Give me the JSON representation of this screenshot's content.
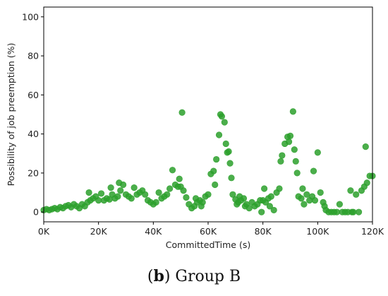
{
  "caption": {
    "letter": "b",
    "text": "Group B"
  },
  "chart_data": {
    "type": "scatter",
    "xlabel": "CommittedTime (s)",
    "ylabel": "Possibility of job preemption (%)",
    "xlim": [
      0,
      120000
    ],
    "ylim": [
      -5,
      105
    ],
    "xticks": [
      0,
      20000,
      40000,
      60000,
      80000,
      100000,
      120000
    ],
    "xtick_labels": [
      "0K",
      "20K",
      "40K",
      "60K",
      "80K",
      "100K",
      "120K"
    ],
    "yticks": [
      0,
      20,
      40,
      60,
      80,
      100
    ],
    "ytick_labels": [
      "0",
      "20",
      "40",
      "60",
      "80",
      "100"
    ],
    "grid": false,
    "color": "#2ca02c",
    "points": [
      [
        0,
        1
      ],
      [
        1000,
        1.5
      ],
      [
        2000,
        1
      ],
      [
        3000,
        1.5
      ],
      [
        4000,
        2
      ],
      [
        5000,
        1.5
      ],
      [
        6000,
        2.5
      ],
      [
        7000,
        2
      ],
      [
        8000,
        3
      ],
      [
        9000,
        3.5
      ],
      [
        10000,
        2.5
      ],
      [
        11000,
        4
      ],
      [
        12000,
        3
      ],
      [
        13000,
        2
      ],
      [
        14000,
        4
      ],
      [
        15000,
        3
      ],
      [
        16000,
        5
      ],
      [
        16500,
        10
      ],
      [
        17000,
        6
      ],
      [
        18000,
        7
      ],
      [
        19000,
        8
      ],
      [
        20000,
        6
      ],
      [
        21000,
        9.5
      ],
      [
        22000,
        6
      ],
      [
        23000,
        7
      ],
      [
        24000,
        6.5
      ],
      [
        24500,
        12.5
      ],
      [
        25000,
        9
      ],
      [
        26000,
        7
      ],
      [
        27000,
        8
      ],
      [
        27500,
        15
      ],
      [
        28000,
        11
      ],
      [
        29000,
        14
      ],
      [
        30000,
        9
      ],
      [
        31000,
        8
      ],
      [
        32000,
        7
      ],
      [
        33000,
        12.5
      ],
      [
        34000,
        9
      ],
      [
        35000,
        10
      ],
      [
        36000,
        11
      ],
      [
        37000,
        9
      ],
      [
        38000,
        6
      ],
      [
        39000,
        5
      ],
      [
        40000,
        4
      ],
      [
        41000,
        5
      ],
      [
        42000,
        10
      ],
      [
        43000,
        7
      ],
      [
        44000,
        8
      ],
      [
        45000,
        9
      ],
      [
        46000,
        12
      ],
      [
        47000,
        21.5
      ],
      [
        48000,
        14
      ],
      [
        49000,
        13
      ],
      [
        49500,
        17
      ],
      [
        50000,
        13
      ],
      [
        50500,
        51
      ],
      [
        51000,
        11
      ],
      [
        52000,
        7.5
      ],
      [
        53000,
        4
      ],
      [
        54000,
        2
      ],
      [
        55000,
        3
      ],
      [
        55500,
        7
      ],
      [
        56000,
        5
      ],
      [
        57000,
        6
      ],
      [
        57500,
        3
      ],
      [
        58000,
        5
      ],
      [
        59000,
        8
      ],
      [
        60000,
        9
      ],
      [
        61000,
        19.5
      ],
      [
        62000,
        21
      ],
      [
        62500,
        14
      ],
      [
        63000,
        27
      ],
      [
        64000,
        39.5
      ],
      [
        64500,
        50
      ],
      [
        65000,
        49
      ],
      [
        66000,
        46
      ],
      [
        66500,
        35
      ],
      [
        67000,
        30.5
      ],
      [
        67500,
        31
      ],
      [
        68000,
        25
      ],
      [
        68500,
        17.5
      ],
      [
        69000,
        9
      ],
      [
        70000,
        6.5
      ],
      [
        70500,
        4
      ],
      [
        71000,
        5
      ],
      [
        71500,
        8
      ],
      [
        72000,
        6
      ],
      [
        73000,
        7
      ],
      [
        73500,
        3
      ],
      [
        74000,
        4
      ],
      [
        75000,
        2
      ],
      [
        76000,
        5
      ],
      [
        77000,
        3
      ],
      [
        78000,
        4
      ],
      [
        79000,
        6
      ],
      [
        79500,
        0
      ],
      [
        80000,
        6
      ],
      [
        80500,
        12
      ],
      [
        81000,
        5
      ],
      [
        82000,
        7
      ],
      [
        82500,
        3
      ],
      [
        83000,
        8
      ],
      [
        84000,
        1
      ],
      [
        85000,
        10
      ],
      [
        86000,
        12
      ],
      [
        86500,
        26
      ],
      [
        87000,
        29
      ],
      [
        88000,
        35
      ],
      [
        89000,
        38.5
      ],
      [
        89500,
        36
      ],
      [
        90000,
        39
      ],
      [
        91000,
        51.5
      ],
      [
        91500,
        32
      ],
      [
        92000,
        26
      ],
      [
        92500,
        20
      ],
      [
        93000,
        8
      ],
      [
        94000,
        7
      ],
      [
        94500,
        12
      ],
      [
        95000,
        4
      ],
      [
        96000,
        9
      ],
      [
        97000,
        6
      ],
      [
        98000,
        8
      ],
      [
        98500,
        21
      ],
      [
        99000,
        6
      ],
      [
        100000,
        30.5
      ],
      [
        101000,
        10
      ],
      [
        102000,
        5
      ],
      [
        102500,
        3
      ],
      [
        103000,
        1
      ],
      [
        104000,
        0
      ],
      [
        105000,
        0
      ],
      [
        106000,
        0
      ],
      [
        107000,
        0
      ],
      [
        108000,
        4
      ],
      [
        109000,
        0
      ],
      [
        110000,
        0
      ],
      [
        111000,
        0
      ],
      [
        112000,
        11
      ],
      [
        112500,
        0
      ],
      [
        113000,
        0
      ],
      [
        114000,
        9
      ],
      [
        115000,
        0
      ],
      [
        116000,
        11
      ],
      [
        117000,
        13
      ],
      [
        117500,
        33.5
      ],
      [
        118000,
        15
      ],
      [
        119000,
        18.5
      ],
      [
        120000,
        18.5
      ]
    ]
  }
}
